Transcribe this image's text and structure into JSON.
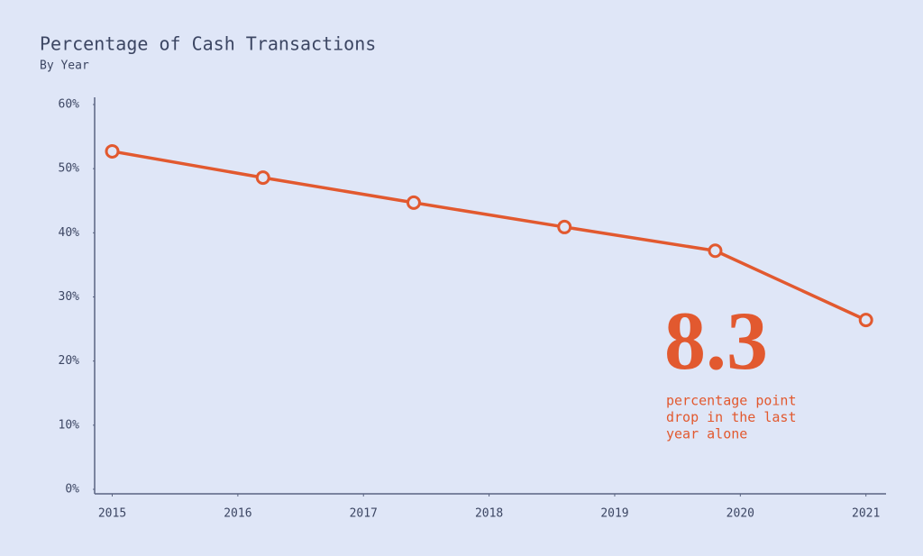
{
  "chart_data": {
    "type": "line",
    "title": "Percentage of Cash Transactions",
    "subtitle": "By Year",
    "x": [
      2015,
      2016.2,
      2017.4,
      2018.6,
      2019.8,
      2021
    ],
    "series": [
      {
        "name": "Cash transactions",
        "color": "#e2592f",
        "values": [
          52.7,
          48.6,
          44.7,
          40.9,
          37.2,
          26.4
        ]
      }
    ],
    "xlim": [
      2014.86,
      2021.16
    ],
    "xticks": [
      2015,
      2016,
      2017,
      2018,
      2019,
      2020,
      2021
    ],
    "ylim": [
      0,
      60
    ],
    "yticks": [
      {
        "value": 0,
        "label": "0%"
      },
      {
        "value": 10,
        "label": "10%"
      },
      {
        "value": 20,
        "label": "20%"
      },
      {
        "value": 30,
        "label": "30%"
      },
      {
        "value": 40,
        "label": "40%"
      },
      {
        "value": 50,
        "label": "50%"
      },
      {
        "value": 60,
        "label": "60%"
      }
    ],
    "annotation": {
      "headline": "8.3",
      "lines": [
        "percentage point",
        "drop in the last",
        "year alone"
      ]
    }
  }
}
